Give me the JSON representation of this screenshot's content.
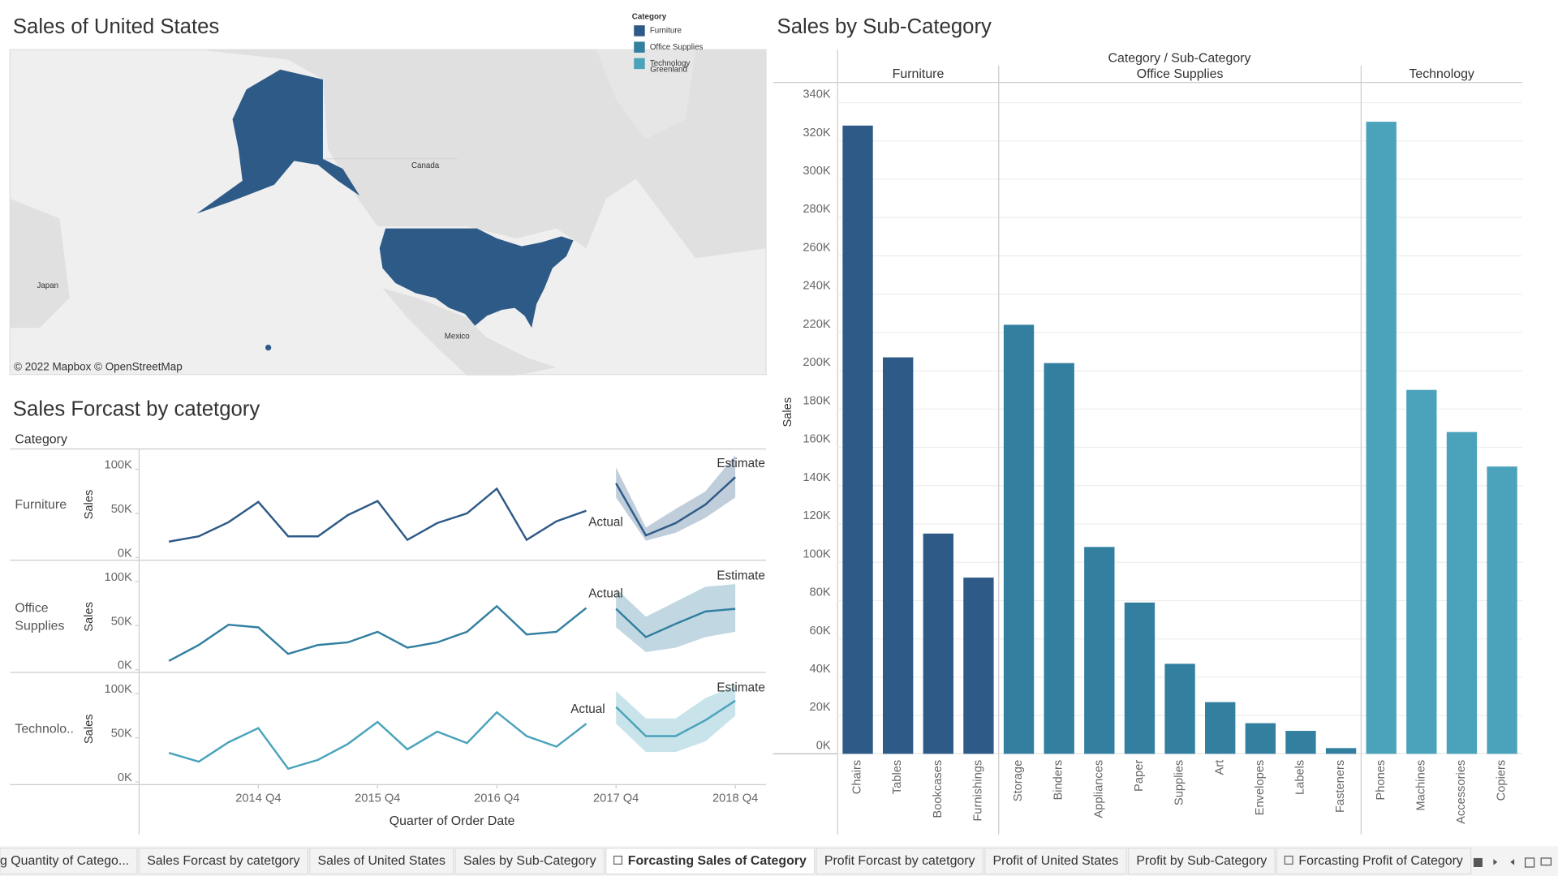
{
  "map": {
    "title": "Sales of United States",
    "attribution": "© 2022 Mapbox © OpenStreetMap",
    "places": [
      "Canada",
      "Japan",
      "Mexico",
      "Greenland"
    ]
  },
  "legend": {
    "title": "Category",
    "items": [
      {
        "name": "Furniture",
        "color": "#2e5a87"
      },
      {
        "name": "Office Supplies",
        "color": "#327fa0"
      },
      {
        "name": "Technology",
        "color": "#4aa3bb"
      }
    ]
  },
  "chart_data": [
    {
      "type": "forecast",
      "title": "Sales Forcast by catetgory",
      "row_header": "Category",
      "x_label": "Quarter of Order Date",
      "xlim": [
        "2013 Q4",
        "2019 Q1"
      ],
      "xticks": [
        "2014 Q4",
        "2015 Q4",
        "2016 Q4",
        "2017 Q4",
        "2018 Q4"
      ],
      "panels": [
        {
          "name": "Furniture",
          "color": "#2e5a87",
          "y_label": "Sales",
          "ylim": [
            -3000,
            123000
          ],
          "yticks": [
            {
              "value": 0,
              "label": "0K"
            },
            {
              "value": 50000,
              "label": "50K"
            },
            {
              "value": 100000,
              "label": "100K"
            }
          ],
          "actual": {
            "name": "Actual",
            "x": [
              "2014 Q1",
              "2014 Q2",
              "2014 Q3",
              "2014 Q4",
              "2015 Q1",
              "2015 Q2",
              "2015 Q3",
              "2015 Q4",
              "2016 Q1",
              "2016 Q2",
              "2016 Q3",
              "2016 Q4",
              "2017 Q1",
              "2017 Q2",
              "2017 Q3"
            ],
            "values": [
              18000,
              24000,
              40000,
              63000,
              24000,
              24000,
              48000,
              64000,
              20000,
              39000,
              50000,
              78000,
              20000,
              41000,
              53000
            ]
          },
          "estimate": {
            "name": "Estimate",
            "x": [
              "2017 Q4",
              "2018 Q1",
              "2018 Q2",
              "2018 Q3",
              "2018 Q4"
            ],
            "values": [
              84000,
              25000,
              39000,
              60000,
              91000
            ],
            "upper": [
              102000,
              34000,
              55000,
              75000,
              116000
            ],
            "lower": [
              68000,
              19000,
              28000,
              45000,
              68000
            ]
          }
        },
        {
          "name": "Office Supplies",
          "color": "#327fa0",
          "y_label": "Sales",
          "ylim": [
            -3000,
            123000
          ],
          "yticks": [
            {
              "value": 0,
              "label": "0K"
            },
            {
              "value": 50000,
              "label": "50K"
            },
            {
              "value": 100000,
              "label": "100K"
            }
          ],
          "actual": {
            "name": "Actual",
            "x": [
              "2014 Q1",
              "2014 Q2",
              "2014 Q3",
              "2014 Q4",
              "2015 Q1",
              "2015 Q2",
              "2015 Q3",
              "2015 Q4",
              "2016 Q1",
              "2016 Q2",
              "2016 Q3",
              "2016 Q4",
              "2017 Q1",
              "2017 Q2",
              "2017 Q3"
            ],
            "values": [
              10000,
              28000,
              51000,
              48000,
              18000,
              28000,
              31000,
              43000,
              25000,
              31000,
              43000,
              72000,
              40000,
              43000,
              70000
            ]
          },
          "estimate": {
            "name": "Estimate",
            "x": [
              "2017 Q4",
              "2018 Q1",
              "2018 Q2",
              "2018 Q3",
              "2018 Q4"
            ],
            "values": [
              69000,
              37000,
              52000,
              66000,
              69000
            ],
            "upper": [
              92000,
              60000,
              77000,
              94000,
              97000
            ],
            "lower": [
              48000,
              20000,
              25000,
              37000,
              43000
            ]
          }
        },
        {
          "name": "Technolo..",
          "color": "#4aa3bb",
          "y_label": "Sales",
          "ylim": [
            -3000,
            123000
          ],
          "yticks": [
            {
              "value": 0,
              "label": "0K"
            },
            {
              "value": 50000,
              "label": "50K"
            },
            {
              "value": 100000,
              "label": "100K"
            }
          ],
          "actual": {
            "name": "Actual",
            "x": [
              "2014 Q1",
              "2014 Q2",
              "2014 Q3",
              "2014 Q4",
              "2015 Q1",
              "2015 Q2",
              "2015 Q3",
              "2015 Q4",
              "2016 Q1",
              "2016 Q2",
              "2016 Q3",
              "2016 Q4",
              "2017 Q1",
              "2017 Q2",
              "2017 Q3"
            ],
            "values": [
              33000,
              23000,
              45000,
              61000,
              15000,
              25000,
              43000,
              68000,
              37000,
              57000,
              44000,
              79000,
              52000,
              40000,
              66000
            ]
          },
          "estimate": {
            "name": "Estimate",
            "x": [
              "2017 Q4",
              "2018 Q1",
              "2018 Q2",
              "2018 Q3",
              "2018 Q4"
            ],
            "values": [
              85000,
              52000,
              52000,
              70000,
              92000
            ],
            "upper": [
              103000,
              72000,
              72000,
              95000,
              109000
            ],
            "lower": [
              66000,
              34000,
              34000,
              46000,
              75000
            ]
          }
        }
      ]
    },
    {
      "type": "bar",
      "title": "Sales by Sub-Category",
      "header": "Category / Sub-Category",
      "y_label": "Sales",
      "ylim": [
        0,
        350000
      ],
      "yticks": [
        {
          "value": 0,
          "label": "0K"
        },
        {
          "value": 20000,
          "label": "20K"
        },
        {
          "value": 40000,
          "label": "40K"
        },
        {
          "value": 60000,
          "label": "60K"
        },
        {
          "value": 80000,
          "label": "80K"
        },
        {
          "value": 100000,
          "label": "100K"
        },
        {
          "value": 120000,
          "label": "120K"
        },
        {
          "value": 140000,
          "label": "140K"
        },
        {
          "value": 160000,
          "label": "160K"
        },
        {
          "value": 180000,
          "label": "180K"
        },
        {
          "value": 200000,
          "label": "200K"
        },
        {
          "value": 220000,
          "label": "220K"
        },
        {
          "value": 240000,
          "label": "240K"
        },
        {
          "value": 260000,
          "label": "260K"
        },
        {
          "value": 280000,
          "label": "280K"
        },
        {
          "value": 300000,
          "label": "300K"
        },
        {
          "value": 320000,
          "label": "320K"
        },
        {
          "value": 340000,
          "label": "340K"
        }
      ],
      "grid": true,
      "groups": [
        {
          "name": "Furniture",
          "color": "#2e5a87",
          "categories": [
            "Chairs",
            "Tables",
            "Bookcases",
            "Furnishings"
          ],
          "values": [
            328000,
            207000,
            115000,
            92000
          ]
        },
        {
          "name": "Office Supplies",
          "color": "#327fa0",
          "categories": [
            "Storage",
            "Binders",
            "Appliances",
            "Paper",
            "Supplies",
            "Art",
            "Envelopes",
            "Labels",
            "Fasteners"
          ],
          "values": [
            224000,
            204000,
            108000,
            79000,
            47000,
            27000,
            16000,
            12000,
            3000
          ]
        },
        {
          "name": "Technology",
          "color": "#4aa3bb",
          "categories": [
            "Phones",
            "Machines",
            "Accessories",
            "Copiers"
          ],
          "values": [
            330000,
            190000,
            168000,
            150000
          ]
        }
      ]
    }
  ],
  "tabs": [
    "g Quantity of Catego...",
    "Sales Forcast by catetgory",
    "Sales of United States",
    "Sales by Sub-Category",
    "Forcasting Sales of Category",
    "Profit Forcast by catetgory",
    "Profit of United States",
    "Profit by Sub-Category",
    "Forcasting Profit of Category"
  ],
  "active_tab": 4
}
